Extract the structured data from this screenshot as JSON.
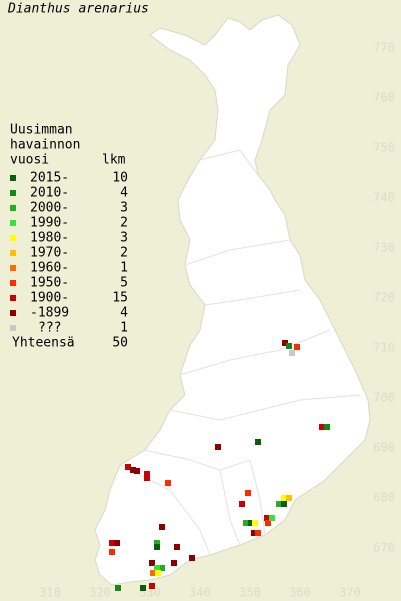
{
  "title": "Dianthus arenarius",
  "legend": {
    "heading": [
      "Uusimman",
      "havainnon",
      "vuosi",
      "lkm"
    ],
    "entries": [
      {
        "label": "2015-",
        "count": 10,
        "color": "#0b5f0b"
      },
      {
        "label": "2010-",
        "count": 4,
        "color": "#138a13"
      },
      {
        "label": "2000-",
        "count": 3,
        "color": "#22b022"
      },
      {
        "label": "1990-",
        "count": 2,
        "color": "#3ce03c"
      },
      {
        "label": "1980-",
        "count": 3,
        "color": "#ffff00"
      },
      {
        "label": "1970-",
        "count": 2,
        "color": "#ffc000"
      },
      {
        "label": "1960-",
        "count": 1,
        "color": "#ff6a00"
      },
      {
        "label": "1950-",
        "count": 5,
        "color": "#ff2a00"
      },
      {
        "label": "1900-",
        "count": 15,
        "color": "#cc0000"
      },
      {
        "label": "-1899",
        "count": 4,
        "color": "#8e0000"
      },
      {
        "label": "???",
        "count": 1,
        "color": "#c8c8c8"
      }
    ],
    "total_label": "Yhteensä",
    "total": 50
  },
  "xticks": [
    310,
    320,
    330,
    340,
    350,
    360,
    370
  ],
  "yticks": [
    670,
    680,
    690,
    700,
    710,
    720,
    730,
    740,
    750,
    760,
    770
  ],
  "observations": [
    {
      "x": 357,
      "y": 711,
      "period": 9
    },
    {
      "x": 357.8,
      "y": 710.4,
      "period": 1
    },
    {
      "x": 358.4,
      "y": 709,
      "period": 10
    },
    {
      "x": 359.4,
      "y": 710.2,
      "period": 7
    },
    {
      "x": 364.4,
      "y": 694.2,
      "period": 8
    },
    {
      "x": 365.4,
      "y": 694.2,
      "period": 1
    },
    {
      "x": 343.6,
      "y": 690.2,
      "period": 9
    },
    {
      "x": 351.6,
      "y": 691.2,
      "period": 0
    },
    {
      "x": 325.6,
      "y": 686.2,
      "period": 8
    },
    {
      "x": 326.6,
      "y": 685.6,
      "period": 9
    },
    {
      "x": 327.4,
      "y": 685.4,
      "period": 9
    },
    {
      "x": 329.4,
      "y": 684.8,
      "period": 8
    },
    {
      "x": 329.4,
      "y": 684,
      "period": 8
    },
    {
      "x": 333.6,
      "y": 683,
      "period": 7
    },
    {
      "x": 349.6,
      "y": 681,
      "period": 7
    },
    {
      "x": 348.4,
      "y": 678.8,
      "period": 8
    },
    {
      "x": 355.8,
      "y": 678.8,
      "period": 2
    },
    {
      "x": 356.8,
      "y": 680,
      "period": 4
    },
    {
      "x": 357.8,
      "y": 680,
      "period": 5
    },
    {
      "x": 356.8,
      "y": 678.8,
      "period": 0
    },
    {
      "x": 349.2,
      "y": 675,
      "period": 2
    },
    {
      "x": 350.2,
      "y": 675,
      "period": 0
    },
    {
      "x": 351,
      "y": 675,
      "period": 4
    },
    {
      "x": 353.4,
      "y": 676,
      "period": 8
    },
    {
      "x": 353.6,
      "y": 675,
      "period": 7
    },
    {
      "x": 354.4,
      "y": 676,
      "period": 3
    },
    {
      "x": 350.8,
      "y": 673,
      "period": 9
    },
    {
      "x": 351.6,
      "y": 673,
      "period": 7
    },
    {
      "x": 332.4,
      "y": 674.2,
      "period": 9
    },
    {
      "x": 322.4,
      "y": 671,
      "period": 8
    },
    {
      "x": 323.4,
      "y": 671,
      "period": 9
    },
    {
      "x": 322.4,
      "y": 669.2,
      "period": 7
    },
    {
      "x": 331.4,
      "y": 671,
      "period": 2
    },
    {
      "x": 331.4,
      "y": 670.2,
      "period": 0
    },
    {
      "x": 335.4,
      "y": 670.2,
      "period": 9
    },
    {
      "x": 330.4,
      "y": 667,
      "period": 9
    },
    {
      "x": 332.4,
      "y": 666,
      "period": 2
    },
    {
      "x": 331.4,
      "y": 666,
      "period": 3
    },
    {
      "x": 330.6,
      "y": 665,
      "period": 6
    },
    {
      "x": 331.6,
      "y": 665,
      "period": 4
    },
    {
      "x": 334.8,
      "y": 667,
      "period": 9
    },
    {
      "x": 338.4,
      "y": 668,
      "period": 9
    },
    {
      "x": 323.6,
      "y": 662,
      "period": 1
    },
    {
      "x": 328.6,
      "y": 662,
      "period": 0
    },
    {
      "x": 330.4,
      "y": 662.4,
      "period": 8
    }
  ]
}
